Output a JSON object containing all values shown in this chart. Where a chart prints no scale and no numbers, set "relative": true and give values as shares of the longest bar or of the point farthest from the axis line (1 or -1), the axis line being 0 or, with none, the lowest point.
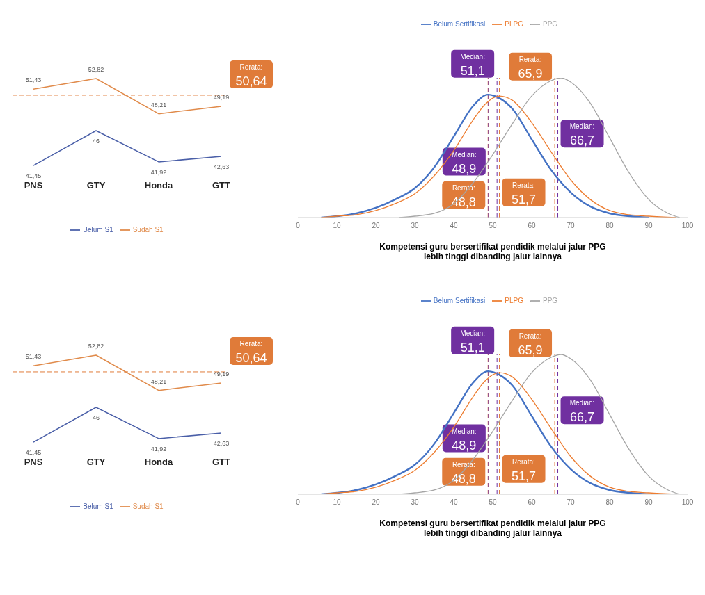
{
  "chart_data": [
    {
      "type": "line",
      "categories": [
        "PNS",
        "GTY",
        "Honda",
        "GTT"
      ],
      "series": [
        {
          "name": "Belum S1",
          "color": "#4a5fa8",
          "values": [
            41.45,
            46,
            41.92,
            42.63
          ],
          "value_labels": [
            "41,45",
            "46",
            "41,92",
            "42,63"
          ]
        },
        {
          "name": "Sudah S1",
          "color": "#e08a4a",
          "values": [
            51.43,
            52.82,
            48.21,
            49.19
          ],
          "value_labels": [
            "51,43",
            "52,82",
            "48,21",
            "49,19"
          ]
        }
      ],
      "ref_lines": [
        {
          "axis": "y",
          "value": 50.64,
          "label": "Rerata:\n50,64",
          "color": "#e07b39",
          "line_style": "dashed"
        }
      ],
      "marker": "none",
      "legend": "bottom",
      "grid": false
    },
    {
      "type": "line",
      "relative": true,
      "xlim": [
        0,
        100
      ],
      "xticks": [
        0,
        10,
        20,
        30,
        40,
        50,
        60,
        70,
        80,
        90,
        100
      ],
      "xlabel": "Kompetensi guru bersertifikat pendidik melalui jalur PPG\nlebih tinggi dibanding jalur lainnya",
      "series": [
        {
          "name": "Belum Sertifikasi",
          "color": "#4472c4",
          "x": [
            6,
            10,
            15,
            20,
            25,
            30,
            35,
            40,
            45,
            48.8,
            52,
            55,
            60,
            65,
            70,
            75,
            80,
            85,
            90
          ],
          "values": [
            0,
            0.01,
            0.03,
            0.07,
            0.13,
            0.21,
            0.36,
            0.58,
            0.8,
            0.88,
            0.85,
            0.78,
            0.56,
            0.34,
            0.18,
            0.08,
            0.03,
            0.01,
            0
          ]
        },
        {
          "name": "PLPG",
          "color": "#ed7d31",
          "x": [
            6,
            10,
            15,
            20,
            25,
            30,
            35,
            40,
            45,
            48,
            51.7,
            55,
            60,
            65,
            70,
            75,
            80,
            85,
            90,
            97
          ],
          "values": [
            0,
            0.01,
            0.02,
            0.05,
            0.1,
            0.17,
            0.3,
            0.48,
            0.7,
            0.81,
            0.87,
            0.84,
            0.68,
            0.47,
            0.27,
            0.13,
            0.05,
            0.02,
            0.01,
            0
          ]
        },
        {
          "name": "PPG",
          "color": "#a5a5a5",
          "x": [
            26,
            30,
            35,
            40,
            45,
            50,
            55,
            60,
            65,
            67.5,
            70,
            75,
            80,
            85,
            90,
            95,
            98
          ],
          "values": [
            0,
            0.01,
            0.03,
            0.1,
            0.25,
            0.45,
            0.67,
            0.87,
            0.98,
            1,
            0.97,
            0.82,
            0.57,
            0.32,
            0.13,
            0.03,
            0
          ]
        }
      ],
      "ref_lines": [
        {
          "axis": "x",
          "value": 48.8,
          "label": "Rerata:\n48,8",
          "color": "#e07b39",
          "line_style": "dashed"
        },
        {
          "axis": "x",
          "value": 48.9,
          "label": "Median:\n48,9",
          "color": "#7030a0",
          "line_style": "dashed"
        },
        {
          "axis": "x",
          "value": 51.1,
          "label": "Median:\n51,1",
          "color": "#7030a0",
          "line_style": "dashed"
        },
        {
          "axis": "x",
          "value": 51.7,
          "label": "Rerata:\n51,7",
          "color": "#e07b39",
          "line_style": "dashed"
        },
        {
          "axis": "x",
          "value": 65.9,
          "label": "Rerata:\n65,9",
          "color": "#e07b39",
          "line_style": "dashed"
        },
        {
          "axis": "x",
          "value": 66.7,
          "label": "Median:\n66,7",
          "color": "#7030a0",
          "line_style": "dashed"
        }
      ],
      "marker": "none",
      "legend": "top",
      "grid": false
    },
    {
      "type": "line",
      "categories": [
        "PNS",
        "GTY",
        "Honda",
        "GTT"
      ],
      "series": [
        {
          "name": "Belum S1",
          "color": "#4a5fa8",
          "values": [
            41.45,
            46,
            41.92,
            42.63
          ],
          "value_labels": [
            "41,45",
            "46",
            "41,92",
            "42,63"
          ]
        },
        {
          "name": "Sudah S1",
          "color": "#e08a4a",
          "values": [
            51.43,
            52.82,
            48.21,
            49.19
          ],
          "value_labels": [
            "51,43",
            "52,82",
            "48,21",
            "49,19"
          ]
        }
      ],
      "ref_lines": [
        {
          "axis": "y",
          "value": 50.64,
          "label": "Rerata:\n50,64",
          "color": "#e07b39",
          "line_style": "dashed"
        }
      ],
      "marker": "none",
      "legend": "bottom",
      "grid": false
    },
    {
      "type": "line",
      "relative": true,
      "xlim": [
        0,
        100
      ],
      "xticks": [
        0,
        10,
        20,
        30,
        40,
        50,
        60,
        70,
        80,
        90,
        100
      ],
      "xlabel": "Kompetensi guru bersertifikat pendidik melalui jalur PPG\nlebih tinggi dibanding jalur lainnya",
      "series": [
        {
          "name": "Belum Sertifikasi",
          "color": "#4472c4",
          "x": [
            6,
            10,
            15,
            20,
            25,
            30,
            35,
            40,
            45,
            48.8,
            52,
            55,
            60,
            65,
            70,
            75,
            80,
            85,
            90
          ],
          "values": [
            0,
            0.01,
            0.03,
            0.07,
            0.13,
            0.21,
            0.36,
            0.58,
            0.8,
            0.88,
            0.85,
            0.78,
            0.56,
            0.34,
            0.18,
            0.08,
            0.03,
            0.01,
            0
          ]
        },
        {
          "name": "PLPG",
          "color": "#ed7d31",
          "x": [
            6,
            10,
            15,
            20,
            25,
            30,
            35,
            40,
            45,
            48,
            51.7,
            55,
            60,
            65,
            70,
            75,
            80,
            85,
            90,
            97
          ],
          "values": [
            0,
            0.01,
            0.02,
            0.05,
            0.1,
            0.17,
            0.3,
            0.48,
            0.7,
            0.81,
            0.87,
            0.84,
            0.68,
            0.47,
            0.27,
            0.13,
            0.05,
            0.02,
            0.01,
            0
          ]
        },
        {
          "name": "PPG",
          "color": "#a5a5a5",
          "x": [
            26,
            30,
            35,
            40,
            45,
            50,
            55,
            60,
            65,
            67.5,
            70,
            75,
            80,
            85,
            90,
            95,
            98
          ],
          "values": [
            0,
            0.01,
            0.03,
            0.1,
            0.25,
            0.45,
            0.67,
            0.87,
            0.98,
            1,
            0.97,
            0.82,
            0.57,
            0.32,
            0.13,
            0.03,
            0
          ]
        }
      ],
      "ref_lines": [
        {
          "axis": "x",
          "value": 48.8,
          "label": "Rerata:\n48,8",
          "color": "#e07b39",
          "line_style": "dashed"
        },
        {
          "axis": "x",
          "value": 48.9,
          "label": "Median:\n48,9",
          "color": "#7030a0",
          "line_style": "dashed"
        },
        {
          "axis": "x",
          "value": 51.1,
          "label": "Median:\n51,1",
          "color": "#7030a0",
          "line_style": "dashed"
        },
        {
          "axis": "x",
          "value": 51.7,
          "label": "Rerata:\n51,7",
          "color": "#e07b39",
          "line_style": "dashed"
        },
        {
          "axis": "x",
          "value": 65.9,
          "label": "Rerata:\n65,9",
          "color": "#e07b39",
          "line_style": "dashed"
        },
        {
          "axis": "x",
          "value": 66.7,
          "label": "Median:\n66,7",
          "color": "#7030a0",
          "line_style": "dashed"
        }
      ],
      "marker": "none",
      "legend": "top",
      "grid": false
    }
  ]
}
